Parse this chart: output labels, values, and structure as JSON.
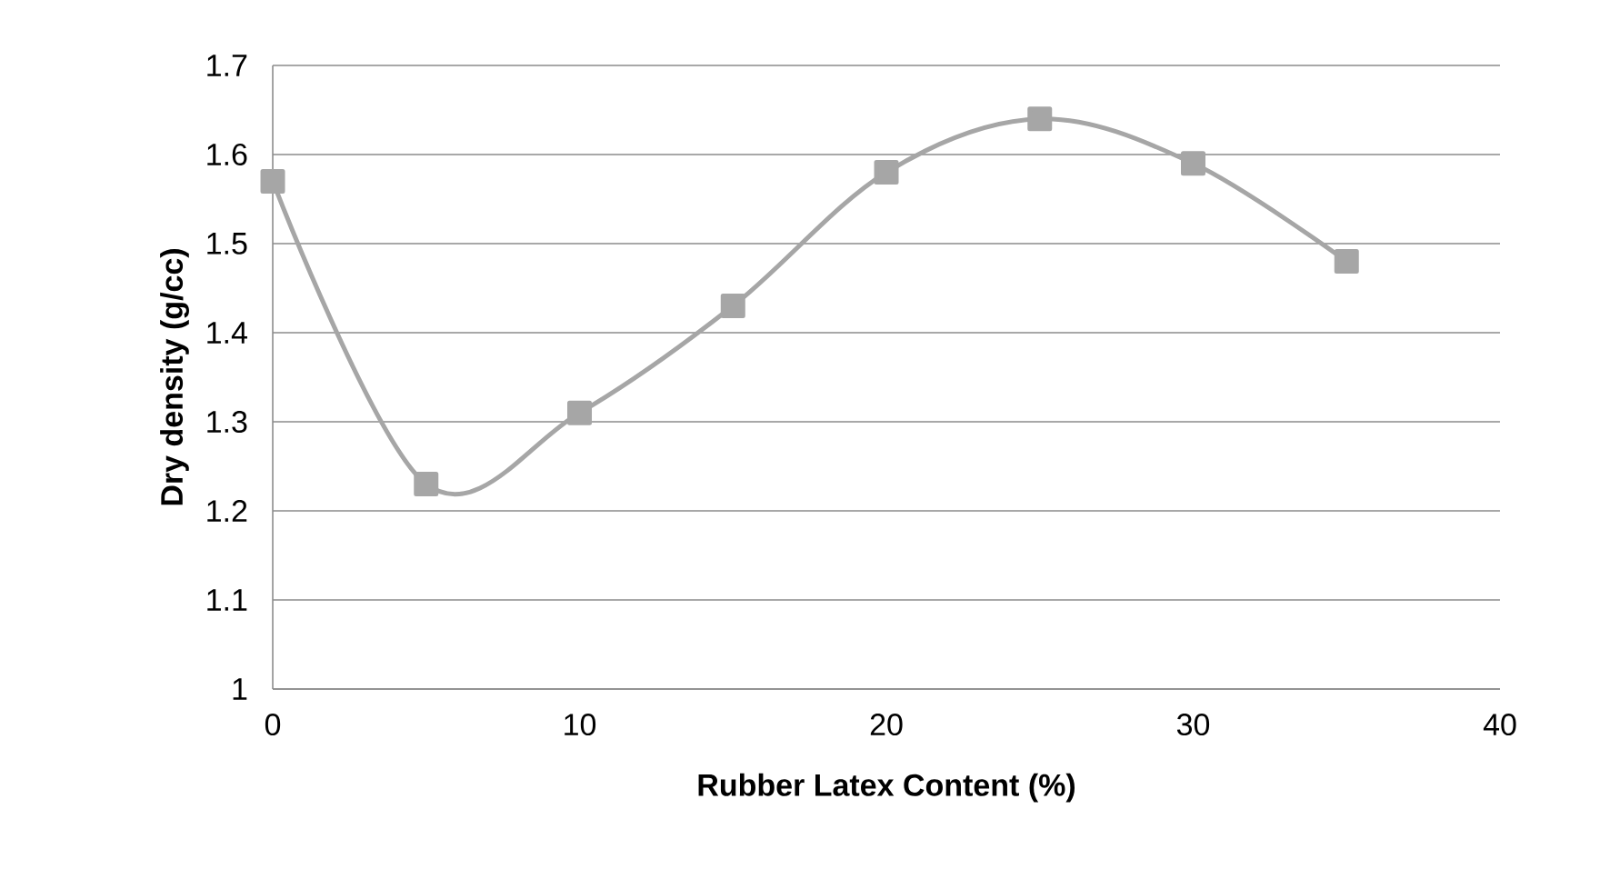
{
  "chart_data": {
    "type": "line",
    "xlabel": "Rubber Latex Content (%)",
    "ylabel": "Dry density (g/cc)",
    "x": [
      0,
      5,
      10,
      15,
      20,
      25,
      30,
      35
    ],
    "series": [
      {
        "color": "#a6a6a6",
        "values": [
          1.57,
          1.23,
          1.31,
          1.43,
          1.58,
          1.64,
          1.59,
          1.48
        ]
      }
    ],
    "xlim": [
      0,
      40
    ],
    "xticks": [
      0,
      10,
      20,
      30,
      40
    ],
    "ylim": [
      1,
      1.7
    ],
    "yticks": [
      1,
      1.1,
      1.2,
      1.3,
      1.4,
      1.5,
      1.6,
      1.7
    ],
    "grid": "y",
    "marker": "square",
    "line_style": "solid"
  }
}
